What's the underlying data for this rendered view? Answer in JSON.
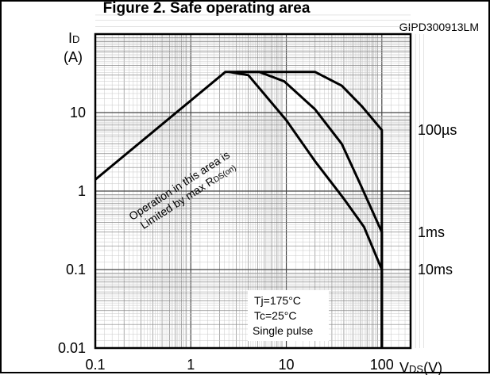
{
  "chart_data": {
    "type": "line",
    "title": "Figure 2. Safe operating area",
    "figure_code": "GIPD300913LM",
    "x_axis": {
      "label_main": "V",
      "label_sub": "DS",
      "label_unit": "(V)",
      "scale": "log",
      "range": [
        0.1,
        200
      ],
      "ticks": [
        0.1,
        1,
        10,
        100
      ],
      "tick_labels": [
        "0.1",
        "1",
        "10",
        "100"
      ]
    },
    "y_axis": {
      "label_main": "I",
      "label_sub": "D",
      "label_unit": "(A)",
      "scale": "log",
      "range": [
        0.01,
        100
      ],
      "ticks": [
        0.01,
        0.1,
        1,
        10
      ],
      "tick_labels": [
        "0.01",
        "0.1",
        "1",
        "10"
      ]
    },
    "grid": true,
    "series": [
      {
        "name": "100µs",
        "points": [
          [
            0.1,
            1.4
          ],
          [
            2.3,
            33
          ],
          [
            20,
            33
          ],
          [
            38,
            22
          ],
          [
            62,
            12
          ],
          [
            100,
            6
          ],
          [
            100,
            0.01
          ]
        ]
      },
      {
        "name": "1ms",
        "points": [
          [
            3,
            33
          ],
          [
            5.2,
            33
          ],
          [
            9.5,
            25
          ],
          [
            20,
            11
          ],
          [
            38,
            4
          ],
          [
            60,
            1.2
          ],
          [
            100,
            0.3
          ],
          [
            100,
            0.01
          ]
        ]
      },
      {
        "name": "10ms",
        "points": [
          [
            2.5,
            33
          ],
          [
            4,
            30
          ],
          [
            10,
            8
          ],
          [
            20,
            2.4
          ],
          [
            40,
            0.8
          ],
          [
            65,
            0.35
          ],
          [
            100,
            0.1
          ],
          [
            100,
            0.01
          ]
        ]
      }
    ],
    "series_labels": [
      {
        "text": "100µs",
        "at_y": 6
      },
      {
        "text": "1ms",
        "at_y": 0.3
      },
      {
        "text": "10ms",
        "at_y": 0.1
      }
    ],
    "annotation_rds": {
      "line1": "Operation in this area is",
      "line2_pre": "Limited by max R",
      "line2_sub": "DS(on)"
    },
    "conditions_box": {
      "line1": "Tj=175°C",
      "line2": "Tc=25°C",
      "line3": "Single pulse"
    }
  }
}
